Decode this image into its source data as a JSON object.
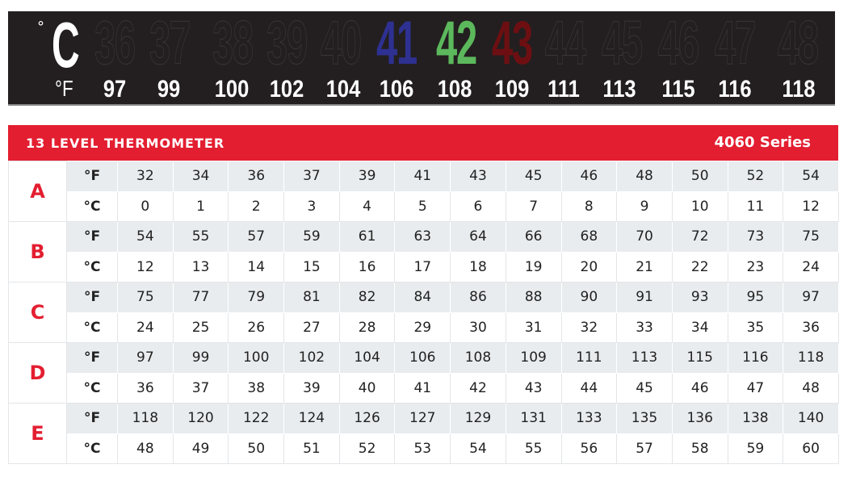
{
  "banner": {
    "celsius_unit": "C",
    "degree_symbol": "°",
    "fahrenheit_unit": "°F",
    "celsius": [
      "36",
      "37",
      "38",
      "39",
      "40",
      "41",
      "42",
      "43",
      "44",
      "45",
      "46",
      "47",
      "48"
    ],
    "fahrenheit": [
      "97",
      "99",
      "100",
      "102",
      "104",
      "106",
      "108",
      "109",
      "111",
      "113",
      "115",
      "116",
      "118"
    ],
    "highlight": {
      "41": "#2e3192",
      "42": "#5cb85c",
      "43": "#6d0f12"
    }
  },
  "header": {
    "title": "13 LEVEL THERMOMETER",
    "series": "4060 Series",
    "color": "#e31e30"
  },
  "levels": [
    {
      "label": "A",
      "f": [
        "32",
        "34",
        "36",
        "37",
        "39",
        "41",
        "43",
        "45",
        "46",
        "48",
        "50",
        "52",
        "54"
      ],
      "c": [
        "0",
        "1",
        "2",
        "3",
        "4",
        "5",
        "6",
        "7",
        "8",
        "9",
        "10",
        "11",
        "12"
      ]
    },
    {
      "label": "B",
      "f": [
        "54",
        "55",
        "57",
        "59",
        "61",
        "63",
        "64",
        "66",
        "68",
        "70",
        "72",
        "73",
        "75"
      ],
      "c": [
        "12",
        "13",
        "14",
        "15",
        "16",
        "17",
        "18",
        "19",
        "20",
        "21",
        "22",
        "23",
        "24"
      ]
    },
    {
      "label": "C",
      "f": [
        "75",
        "77",
        "79",
        "81",
        "82",
        "84",
        "86",
        "88",
        "90",
        "91",
        "93",
        "95",
        "97"
      ],
      "c": [
        "24",
        "25",
        "26",
        "27",
        "28",
        "29",
        "30",
        "31",
        "32",
        "33",
        "34",
        "35",
        "36"
      ]
    },
    {
      "label": "D",
      "f": [
        "97",
        "99",
        "100",
        "102",
        "104",
        "106",
        "108",
        "109",
        "111",
        "113",
        "115",
        "116",
        "118"
      ],
      "c": [
        "36",
        "37",
        "38",
        "39",
        "40",
        "41",
        "42",
        "43",
        "44",
        "45",
        "46",
        "47",
        "48"
      ]
    },
    {
      "label": "E",
      "f": [
        "118",
        "120",
        "122",
        "124",
        "126",
        "127",
        "129",
        "131",
        "133",
        "135",
        "136",
        "138",
        "140"
      ],
      "c": [
        "48",
        "49",
        "50",
        "51",
        "52",
        "53",
        "54",
        "55",
        "56",
        "57",
        "58",
        "59",
        "60"
      ]
    }
  ],
  "unit_labels": {
    "f": "°F",
    "c": "°C"
  }
}
